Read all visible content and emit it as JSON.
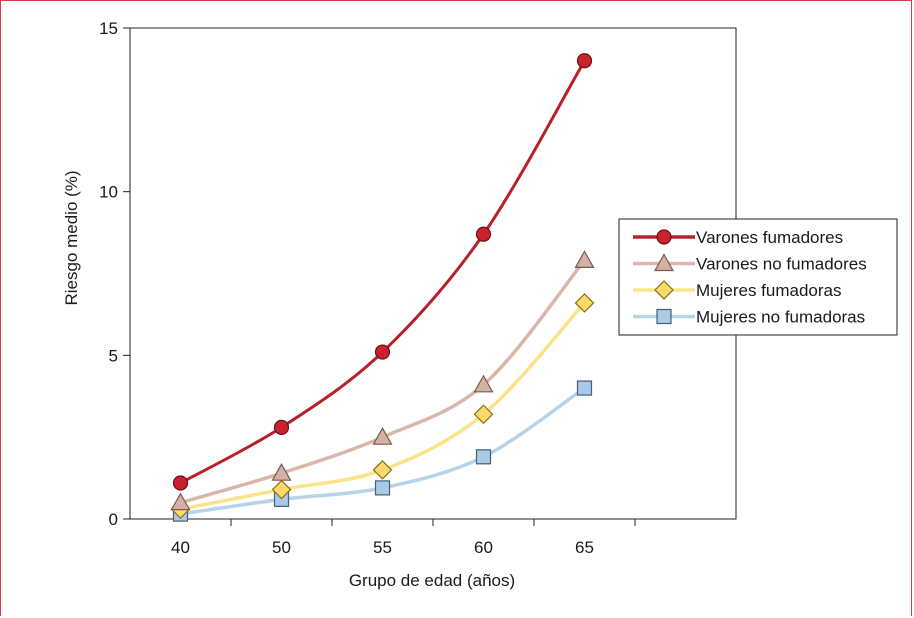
{
  "chart_data": {
    "type": "line",
    "title": "",
    "xlabel": "Grupo de edad (años)",
    "ylabel": "Riesgo medio (%)",
    "categories": [
      "40",
      "50",
      "55",
      "60",
      "65"
    ],
    "ylim": [
      0,
      15
    ],
    "yticks": [
      0,
      5,
      10,
      15
    ],
    "grid": false,
    "legend_position": "right",
    "series": [
      {
        "name": "Varones fumadores",
        "marker": "circle",
        "line_color": "#b8202a",
        "marker_fill": "#c8222e",
        "marker_stroke": "#6a1015",
        "values": [
          1.1,
          2.8,
          5.1,
          8.7,
          14.0
        ]
      },
      {
        "name": "Varones no fumadores",
        "marker": "triangle",
        "line_color": "#d9b8ab",
        "marker_fill": "#d5b1a4",
        "marker_stroke": "#7a5a4e",
        "values": [
          0.5,
          1.4,
          2.5,
          4.1,
          7.9
        ]
      },
      {
        "name": "Mujeres fumadoras",
        "marker": "diamond",
        "line_color": "#fbe38a",
        "marker_fill": "#fadb6a",
        "marker_stroke": "#8a6d17",
        "values": [
          0.3,
          0.9,
          1.5,
          3.2,
          6.6
        ]
      },
      {
        "name": "Mujeres no fumadoras",
        "marker": "square",
        "line_color": "#b7d3ea",
        "marker_fill": "#a9cae6",
        "marker_stroke": "#44607a",
        "values": [
          0.15,
          0.6,
          0.95,
          1.9,
          4.0
        ]
      }
    ]
  }
}
